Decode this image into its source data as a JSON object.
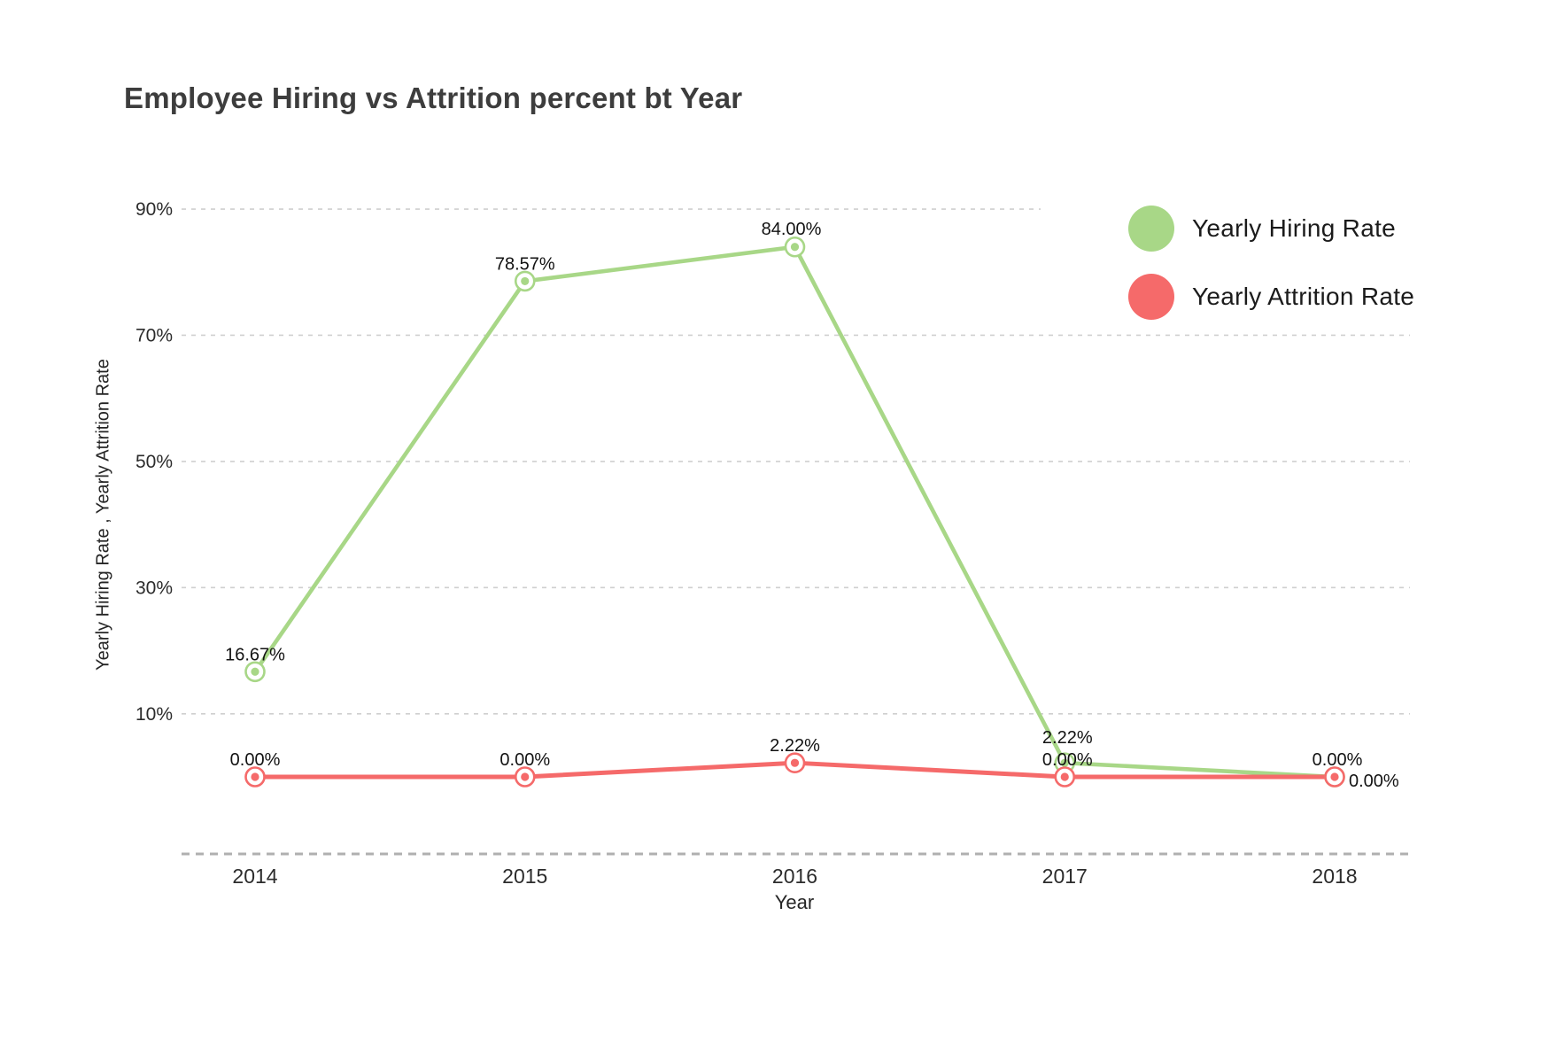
{
  "chart_data": {
    "type": "line",
    "title": "Employee Hiring vs Attrition percent bt Year",
    "xlabel": "Year",
    "ylabel": "Yearly Hiring Rate , Yearly Attrition Rate",
    "categories": [
      "2014",
      "2015",
      "2016",
      "2017",
      "2018"
    ],
    "y_ticks": [
      "90%",
      "70%",
      "50%",
      "30%",
      "10%"
    ],
    "y_tick_values": [
      90,
      70,
      50,
      30,
      10
    ],
    "ylim": [
      0,
      95
    ],
    "grid": "horizontal dashed",
    "legend_position": "top-right",
    "colors": {
      "hiring_green": "#a8d787",
      "attrition_red": "#f56a6a",
      "gridline": "#cfcfcf",
      "axis_line": "#b0b0b0",
      "tick_text": "#2c2c2c",
      "data_label_text": "#121212",
      "title_text": "#3d3d3d"
    },
    "series": [
      {
        "name": "Yearly Hiring Rate",
        "color": "#a8d787",
        "values": [
          16.67,
          78.57,
          84.0,
          2.22,
          0.0
        ],
        "labels": [
          "16.67%",
          "78.57%",
          "84.00%",
          "2.22%",
          "0.00%"
        ],
        "label_placement": [
          "above",
          "above",
          "above",
          "above",
          "above"
        ],
        "label_offsets": [
          [
            0,
            0
          ],
          [
            0,
            0
          ],
          [
            -4,
            -1
          ],
          [
            3,
            -9
          ],
          [
            3,
            0
          ]
        ]
      },
      {
        "name": "Yearly Attrition Rate",
        "color": "#f56a6a",
        "values": [
          0.0,
          0.0,
          2.22,
          0.0,
          0.0
        ],
        "labels": [
          "0.00%",
          "0.00%",
          "2.22%",
          "0.00%",
          "0.00%"
        ],
        "label_placement": [
          "above",
          "above",
          "above",
          "above",
          "right"
        ],
        "label_offsets": [
          [
            0,
            0
          ],
          [
            0,
            0
          ],
          [
            0,
            0
          ],
          [
            3,
            0
          ],
          [
            16,
            11
          ]
        ]
      }
    ]
  }
}
